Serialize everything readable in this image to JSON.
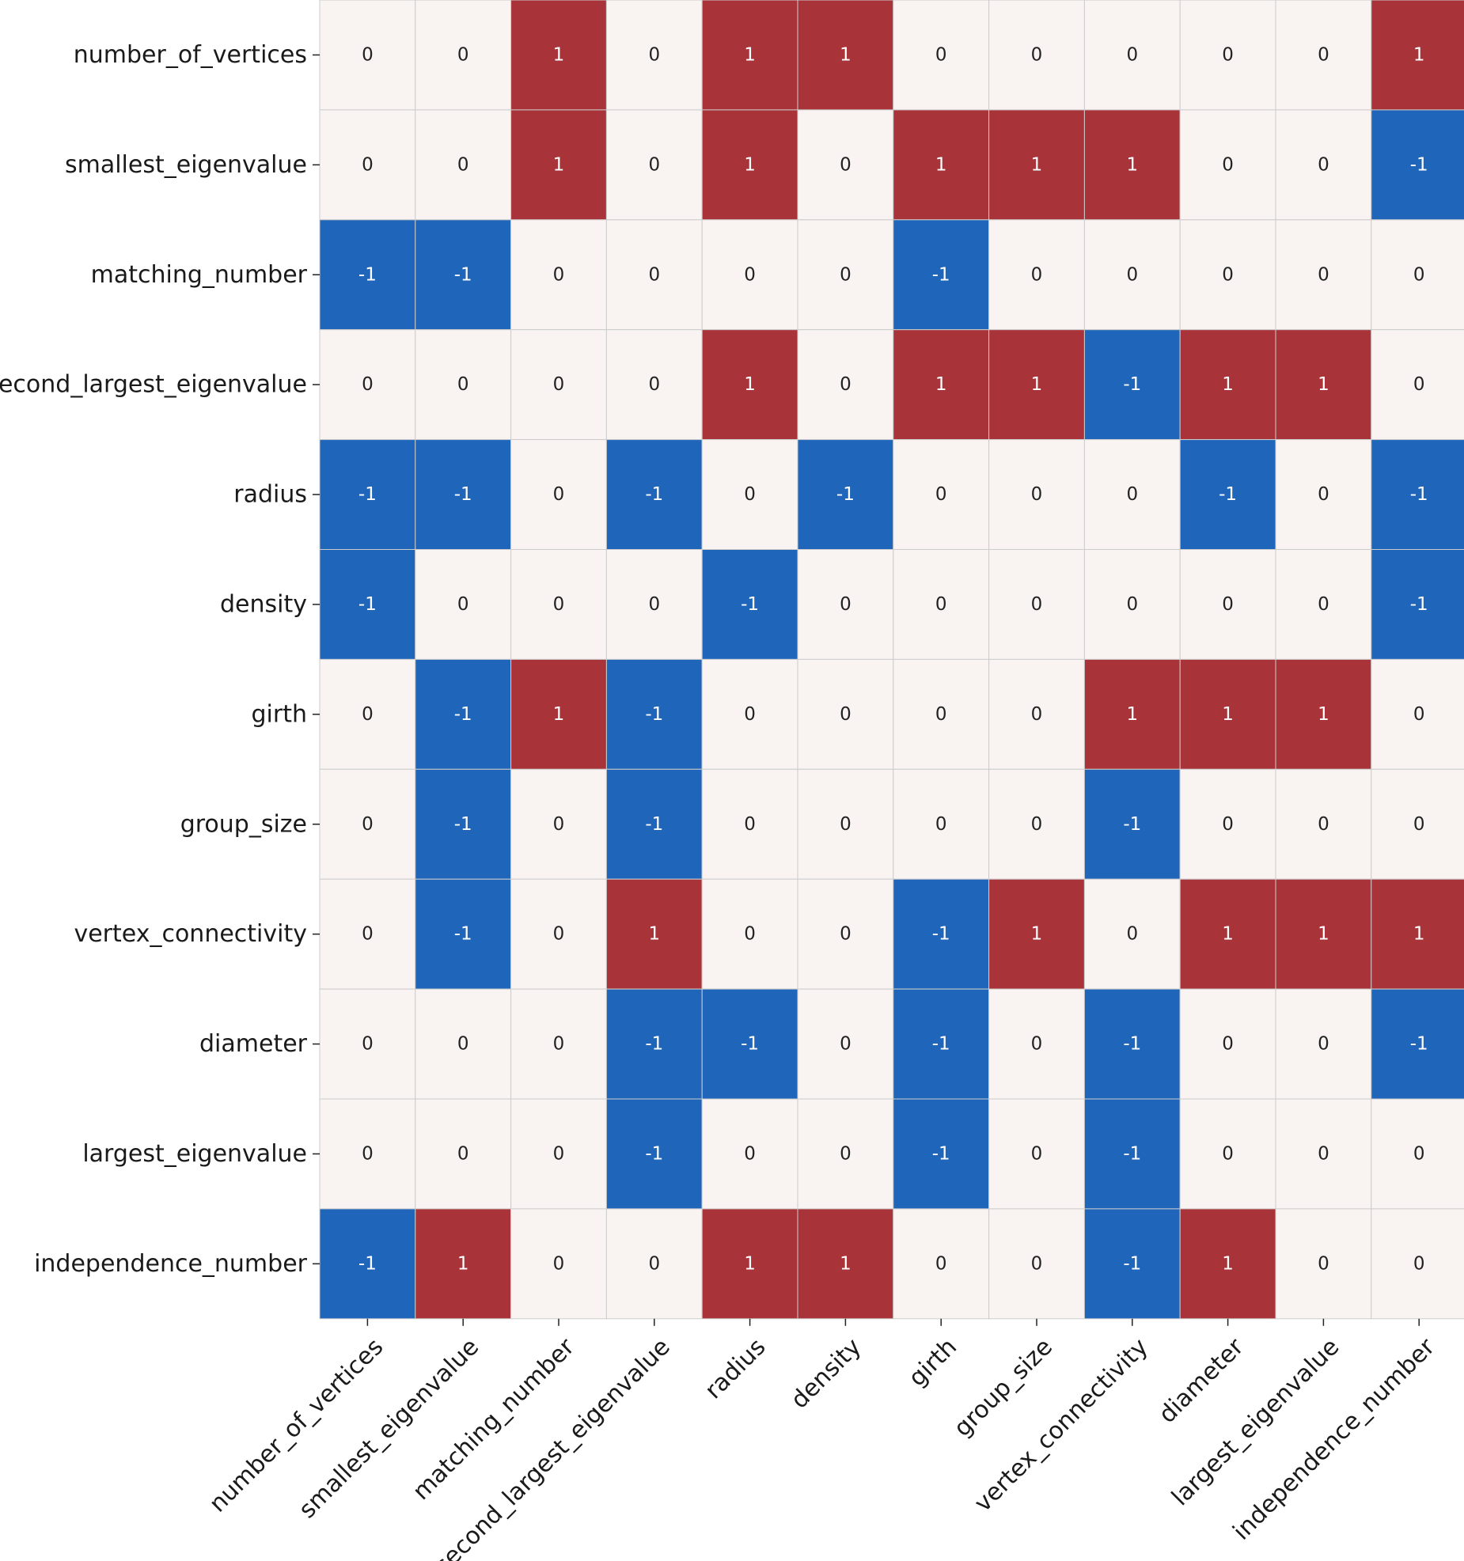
{
  "chart_data": {
    "type": "heatmap",
    "title": "",
    "xlabel": "",
    "ylabel": "",
    "rows": [
      "number_of_vertices",
      "smallest_eigenvalue",
      "matching_number",
      "second_largest_eigenvalue",
      "radius",
      "density",
      "girth",
      "group_size",
      "vertex_connectivity",
      "diameter",
      "largest_eigenvalue",
      "independence_number"
    ],
    "columns": [
      "number_of_vertices",
      "smallest_eigenvalue",
      "matching_number",
      "second_largest_eigenvalue",
      "radius",
      "density",
      "girth",
      "group_size",
      "vertex_connectivity",
      "diameter",
      "largest_eigenvalue",
      "independence_number"
    ],
    "values": [
      [
        0,
        0,
        1,
        0,
        1,
        1,
        0,
        0,
        0,
        0,
        0,
        1
      ],
      [
        0,
        0,
        1,
        0,
        1,
        0,
        1,
        1,
        1,
        0,
        0,
        -1
      ],
      [
        -1,
        -1,
        0,
        0,
        0,
        0,
        -1,
        0,
        0,
        0,
        0,
        0
      ],
      [
        0,
        0,
        0,
        0,
        1,
        0,
        1,
        1,
        -1,
        1,
        1,
        0
      ],
      [
        -1,
        -1,
        0,
        -1,
        0,
        -1,
        0,
        0,
        0,
        -1,
        0,
        -1
      ],
      [
        -1,
        0,
        0,
        0,
        -1,
        0,
        0,
        0,
        0,
        0,
        0,
        -1
      ],
      [
        0,
        -1,
        1,
        -1,
        0,
        0,
        0,
        0,
        1,
        1,
        1,
        0
      ],
      [
        0,
        -1,
        0,
        -1,
        0,
        0,
        0,
        0,
        -1,
        0,
        0,
        0
      ],
      [
        0,
        -1,
        0,
        1,
        0,
        0,
        -1,
        1,
        0,
        1,
        1,
        1
      ],
      [
        0,
        0,
        0,
        -1,
        -1,
        0,
        -1,
        0,
        -1,
        0,
        0,
        -1
      ],
      [
        0,
        0,
        0,
        -1,
        0,
        0,
        -1,
        0,
        -1,
        0,
        0,
        0
      ],
      [
        -1,
        1,
        0,
        0,
        1,
        1,
        0,
        0,
        -1,
        1,
        0,
        0
      ]
    ],
    "colors": {
      "positive": "#a83338",
      "neutral": "#f9f3f2",
      "negative": "#1f66bb",
      "positive_text": "#ffffff",
      "neutral_text": "#222222",
      "negative_text": "#ffffff",
      "grid": "#cccccc"
    },
    "grid": true,
    "colorbar": false
  }
}
